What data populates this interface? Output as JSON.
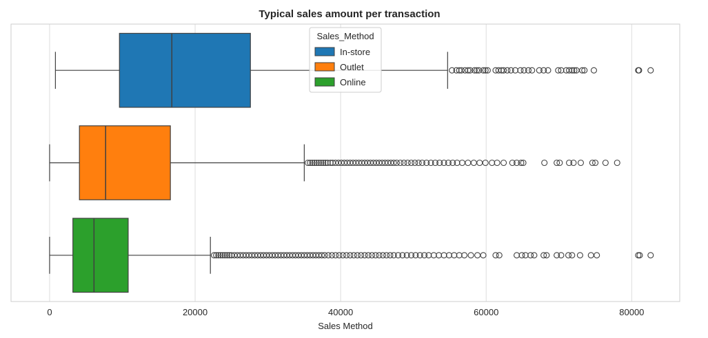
{
  "chart_data": {
    "type": "boxplot",
    "orientation": "horizontal",
    "title": "Typical sales amount per transaction",
    "xlabel": "Sales Method",
    "ylabel": "",
    "xlim": [
      -5300,
      86600
    ],
    "xticks": [
      0,
      20000,
      40000,
      60000,
      80000
    ],
    "xtick_labels": [
      "0",
      "20000",
      "40000",
      "60000",
      "80000"
    ],
    "grid": "vertical",
    "legend": {
      "title": "Sales_Method",
      "placement": "top-center",
      "entries": [
        "In-store",
        "Outlet",
        "Online"
      ]
    },
    "series": [
      {
        "name": "In-store",
        "color": "#1f77b4",
        "whisker_low": 800,
        "q1": 9600,
        "median": 16800,
        "q3": 27600,
        "whisker_high": 54700,
        "outliers": [
          55300,
          55900,
          56300,
          56600,
          57100,
          57500,
          57800,
          58400,
          58700,
          59000,
          59600,
          59900,
          60200,
          61300,
          61700,
          62100,
          62400,
          62900,
          63400,
          64000,
          64700,
          65200,
          65800,
          66300,
          67300,
          67900,
          68500,
          69900,
          70300,
          71000,
          71400,
          71800,
          72100,
          72400,
          73200,
          73500,
          74800,
          80900,
          81000,
          82600
        ]
      },
      {
        "name": "Outlet",
        "color": "#ff7f0e",
        "whisker_low": 0,
        "q1": 4100,
        "median": 7700,
        "q3": 16600,
        "whisker_high": 35000,
        "outliers": [
          35500,
          35800,
          36100,
          36400,
          36700,
          37000,
          37300,
          37600,
          37900,
          38200,
          38600,
          38900,
          39300,
          39700,
          40100,
          40500,
          40900,
          41300,
          41700,
          42100,
          42500,
          42900,
          43300,
          43700,
          44100,
          44500,
          44900,
          45300,
          45700,
          46100,
          46500,
          46900,
          47300,
          47700,
          48200,
          48700,
          49200,
          49700,
          50200,
          50700,
          51200,
          51800,
          52400,
          53000,
          53600,
          54200,
          54800,
          55400,
          56000,
          56700,
          57500,
          58300,
          59100,
          59900,
          60800,
          61500,
          62400,
          63600,
          64200,
          64800,
          65100,
          68000,
          69700,
          70100,
          71400,
          72000,
          73000,
          74600,
          75000,
          76400,
          78000
        ]
      },
      {
        "name": "Online",
        "color": "#2ca02c",
        "whisker_low": 0,
        "q1": 3200,
        "median": 6100,
        "q3": 10800,
        "whisker_high": 22100,
        "outliers": [
          22600,
          22900,
          23200,
          23500,
          23800,
          24100,
          24400,
          24700,
          25000,
          25400,
          25800,
          26200,
          26600,
          27000,
          27400,
          27800,
          28200,
          28600,
          29000,
          29400,
          29800,
          30200,
          30600,
          31000,
          31400,
          31800,
          32200,
          32600,
          33000,
          33400,
          33800,
          34200,
          34600,
          35000,
          35400,
          35800,
          36200,
          36600,
          37000,
          37400,
          37800,
          38300,
          38800,
          39300,
          39800,
          40300,
          40800,
          41300,
          41800,
          42300,
          42800,
          43300,
          43800,
          44300,
          44800,
          45300,
          45800,
          46300,
          46800,
          47300,
          47900,
          48500,
          49100,
          49700,
          50300,
          50900,
          51500,
          52100,
          52800,
          53500,
          54200,
          54900,
          55600,
          56300,
          57000,
          57900,
          58800,
          59600,
          61300,
          61800,
          64200,
          64900,
          65400,
          66100,
          66600,
          67900,
          68300,
          69700,
          70300,
          71300,
          71800,
          72900,
          74400,
          75200,
          80900,
          81100,
          82600
        ]
      }
    ]
  }
}
